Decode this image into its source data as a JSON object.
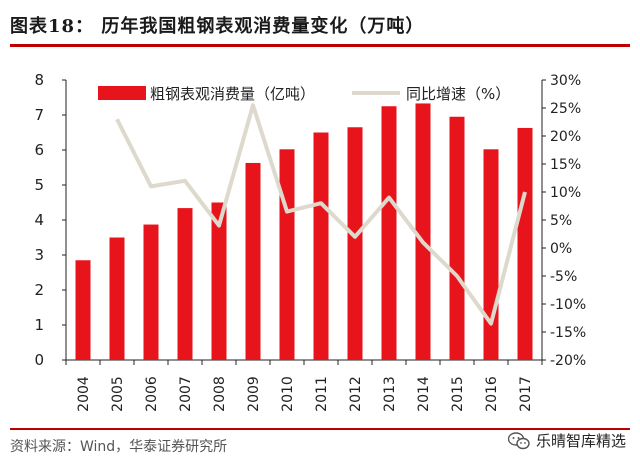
{
  "header": {
    "title": "图表18：  历年我国粗钢表观消费量变化（万吨）"
  },
  "footer": {
    "source": "资料来源：Wind，华泰证券研究所",
    "watermark": "乐晴智库精选"
  },
  "colors": {
    "bar": "#e8141b",
    "line": "#ddd9cc",
    "accent": "#c00000"
  },
  "chart_data": {
    "type": "bar",
    "categories": [
      "2004",
      "2005",
      "2006",
      "2007",
      "2008",
      "2009",
      "2010",
      "2011",
      "2012",
      "2013",
      "2014",
      "2015",
      "2016",
      "2017"
    ],
    "series": [
      {
        "name": "粗钢表观消费量（亿吨）",
        "type": "bar",
        "axis": "left",
        "values": [
          2.85,
          3.5,
          3.87,
          4.34,
          4.5,
          5.63,
          6.02,
          6.5,
          6.65,
          7.25,
          7.33,
          6.95,
          6.02,
          6.63
        ]
      },
      {
        "name": "同比增速（%）",
        "type": "line",
        "axis": "right",
        "values": [
          null,
          23.0,
          11.0,
          12.0,
          4.0,
          25.5,
          6.5,
          8.0,
          2.0,
          9.0,
          1.0,
          -5.0,
          -13.5,
          10.0
        ]
      }
    ],
    "y_left": {
      "ylim": [
        0,
        8
      ],
      "ticks": [
        "0",
        "1",
        "2",
        "3",
        "4",
        "5",
        "6",
        "7",
        "8"
      ]
    },
    "y_right": {
      "ylim": [
        -20,
        30
      ],
      "ticks": [
        "-20%",
        "-15%",
        "-10%",
        "-5%",
        "0%",
        "5%",
        "10%",
        "15%",
        "20%",
        "25%",
        "30%"
      ]
    },
    "legend": {
      "placement": "top",
      "items": [
        "粗钢表观消费量（亿吨）",
        "同比增速（%）"
      ]
    },
    "grid": false
  }
}
